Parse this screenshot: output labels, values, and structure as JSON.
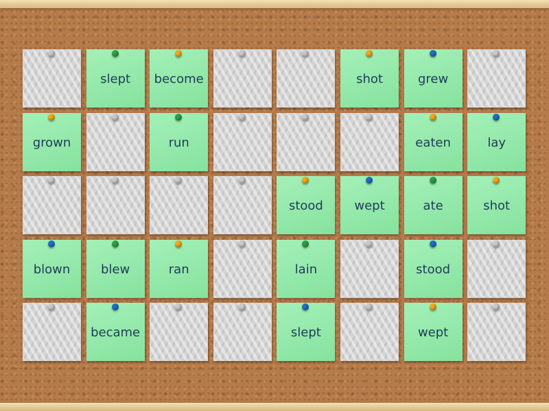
{
  "board": {
    "rows": [
      [
        null,
        {
          "text": "slept",
          "pin": "#2f9e4a"
        },
        {
          "text": "become",
          "pin": "#f0a81c"
        },
        null,
        null,
        {
          "text": "shot",
          "pin": "#f0a81c"
        },
        {
          "text": "grew",
          "pin": "#1f6fc0"
        },
        null
      ],
      [
        {
          "text": "grown",
          "pin": "#f0a81c"
        },
        null,
        {
          "text": "run",
          "pin": "#2f9e4a"
        },
        null,
        null,
        null,
        {
          "text": "eaten",
          "pin": "#f0a81c"
        },
        {
          "text": "lay",
          "pin": "#1f6fc0"
        }
      ],
      [
        null,
        null,
        null,
        null,
        {
          "text": "stood",
          "pin": "#f0a81c"
        },
        {
          "text": "wept",
          "pin": "#1f6fc0"
        },
        {
          "text": "ate",
          "pin": "#2f9e4a"
        },
        {
          "text": "shot",
          "pin": "#f0a81c"
        }
      ],
      [
        {
          "text": "blown",
          "pin": "#1f6fc0"
        },
        {
          "text": "blew",
          "pin": "#2f9e4a"
        },
        {
          "text": "ran",
          "pin": "#f0a81c"
        },
        null,
        {
          "text": "lain",
          "pin": "#2f9e4a"
        },
        null,
        {
          "text": "stood",
          "pin": "#1f6fc0"
        },
        null
      ],
      [
        null,
        {
          "text": "became",
          "pin": "#1f6fc0"
        },
        null,
        null,
        {
          "text": "slept",
          "pin": "#1f6fc0"
        },
        null,
        {
          "text": "wept",
          "pin": "#f0a81c"
        },
        null
      ]
    ]
  }
}
